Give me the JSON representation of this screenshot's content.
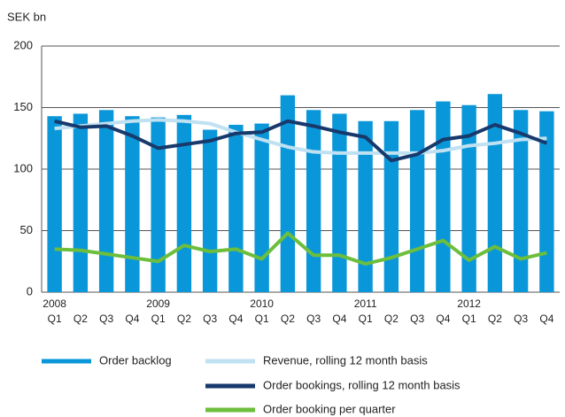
{
  "chart_data": {
    "type": "bar",
    "y_label": "SEK bn",
    "categories": [
      "Q1",
      "Q2",
      "Q3",
      "Q4",
      "Q1",
      "Q2",
      "Q3",
      "Q4",
      "Q1",
      "Q2",
      "Q3",
      "Q4",
      "Q1",
      "Q2",
      "Q3",
      "Q4",
      "Q1",
      "Q2",
      "Q3",
      "Q4"
    ],
    "category_groups": [
      "2008",
      null,
      null,
      null,
      "2009",
      null,
      null,
      null,
      "2010",
      null,
      null,
      null,
      "2011",
      null,
      null,
      null,
      "2012",
      null,
      null,
      null
    ],
    "ylim": [
      0,
      200
    ],
    "yticks": [
      0,
      50,
      100,
      150,
      200
    ],
    "grid": true,
    "series": [
      {
        "name": "Order backlog",
        "type": "bar",
        "color": "#0a97d9",
        "values": [
          143,
          145,
          148,
          143,
          142,
          144,
          132,
          136,
          137,
          160,
          148,
          145,
          139,
          139,
          148,
          155,
          152,
          161,
          148,
          147
        ]
      },
      {
        "name": "Revenue, rolling 12 month basis",
        "type": "line",
        "color": "#bfe1f2",
        "values": [
          133,
          135,
          137,
          139,
          140,
          139,
          137,
          130,
          124,
          118,
          114,
          113,
          113,
          113,
          113,
          115,
          119,
          121,
          124,
          125
        ]
      },
      {
        "name": "Order bookings, rolling 12 month basis",
        "type": "line",
        "color": "#17396b",
        "values": [
          139,
          134,
          135,
          127,
          117,
          120,
          123,
          129,
          130,
          139,
          135,
          130,
          126,
          107,
          112,
          124,
          127,
          136,
          129,
          121
        ]
      },
      {
        "name": "Order booking per quarter",
        "type": "line",
        "color": "#6cbe3c",
        "values": [
          35,
          34,
          31,
          28,
          25,
          38,
          33,
          35,
          27,
          48,
          30,
          30,
          23,
          28,
          35,
          42,
          26,
          37,
          27,
          32
        ]
      }
    ]
  }
}
